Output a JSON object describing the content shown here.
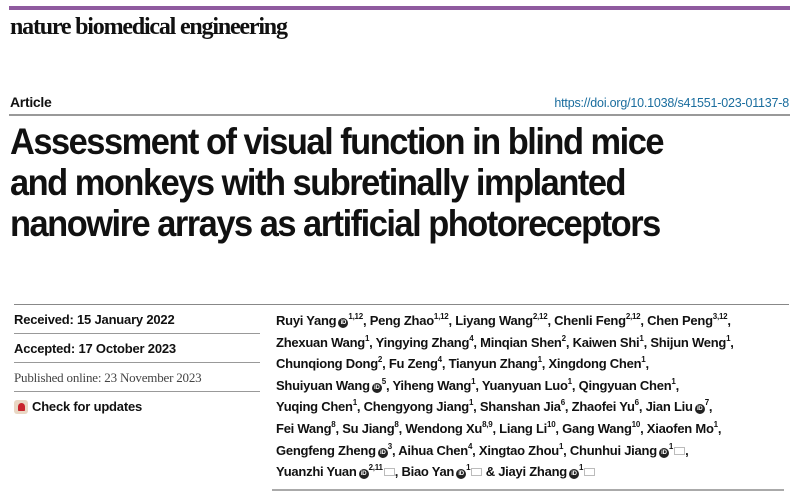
{
  "journal": {
    "name": "nature biomedical engineering",
    "accent_color": "#8f5a9f"
  },
  "article": {
    "type": "Article",
    "doi": "https://doi.org/10.1038/s41551-023-01137-8",
    "title_lines": [
      "Assessment of visual function in blind mice",
      "and monkeys with subretinally implanted",
      "nanowire arrays as artificial photoreceptors"
    ]
  },
  "dates": {
    "received": "Received: 15 January 2022",
    "accepted": "Accepted: 17 October 2023",
    "published": "Published online: 23 November 2023",
    "check_updates": "Check for updates"
  },
  "authors": [
    {
      "name": "Ruyi Yang",
      "aff": "1,12",
      "orcid": true
    },
    {
      "name": "Peng Zhao",
      "aff": "1,12"
    },
    {
      "name": "Liyang Wang",
      "aff": "2,12"
    },
    {
      "name": "Chenli Feng",
      "aff": "2,12"
    },
    {
      "name": "Chen Peng",
      "aff": "3,12",
      "br": true
    },
    {
      "name": "Zhexuan Wang",
      "aff": "1"
    },
    {
      "name": "Yingying Zhang",
      "aff": "4"
    },
    {
      "name": "Minqian Shen",
      "aff": "2"
    },
    {
      "name": "Kaiwen Shi",
      "aff": "1"
    },
    {
      "name": "Shijun Weng",
      "aff": "1",
      "br": true
    },
    {
      "name": "Chunqiong Dong",
      "aff": "2"
    },
    {
      "name": "Fu Zeng",
      "aff": "4"
    },
    {
      "name": "Tianyun Zhang",
      "aff": "1"
    },
    {
      "name": "Xingdong Chen",
      "aff": "1",
      "br": true
    },
    {
      "name": "Shuiyuan Wang",
      "aff": "5",
      "orcid": true
    },
    {
      "name": "Yiheng Wang",
      "aff": "1"
    },
    {
      "name": "Yuanyuan Luo",
      "aff": "1"
    },
    {
      "name": "Qingyuan Chen",
      "aff": "1",
      "br": true
    },
    {
      "name": "Yuqing Chen",
      "aff": "1"
    },
    {
      "name": "Chengyong Jiang",
      "aff": "1"
    },
    {
      "name": "Shanshan Jia",
      "aff": "6"
    },
    {
      "name": "Zhaofei Yu",
      "aff": "6"
    },
    {
      "name": "Jian Liu",
      "aff": "7",
      "orcid": true,
      "br": true
    },
    {
      "name": "Fei Wang",
      "aff": "8"
    },
    {
      "name": "Su Jiang",
      "aff": "8"
    },
    {
      "name": "Wendong Xu",
      "aff": "8,9"
    },
    {
      "name": "Liang Li",
      "aff": "10"
    },
    {
      "name": "Gang Wang",
      "aff": "10"
    },
    {
      "name": "Xiaofen Mo",
      "aff": "1",
      "br": true
    },
    {
      "name": "Gengfeng Zheng",
      "aff": "3",
      "orcid": true
    },
    {
      "name": "Aihua Chen",
      "aff": "4"
    },
    {
      "name": "Xingtao Zhou",
      "aff": "1"
    },
    {
      "name": "Chunhui Jiang",
      "aff": "1",
      "orcid": true,
      "mail": true,
      "br": true
    },
    {
      "name": "Yuanzhi Yuan",
      "aff": "2,11",
      "orcid": true,
      "mail": true
    },
    {
      "name": "Biao Yan",
      "aff": "1",
      "orcid": true,
      "mail": true
    },
    {
      "name": "Jiayi Zhang",
      "aff": "1",
      "orcid": true,
      "mail": true,
      "amp": true
    }
  ]
}
